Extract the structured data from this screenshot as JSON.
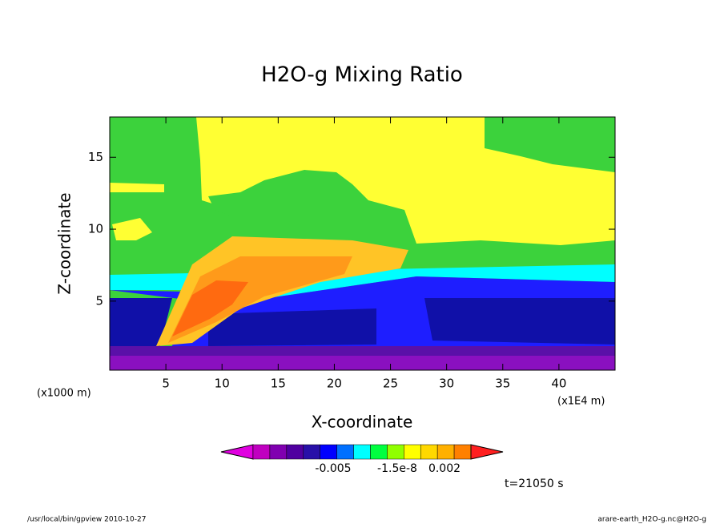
{
  "chart_data": {
    "type": "contour",
    "title": "H2O-g Mixing Ratio",
    "xlabel": "X-coordinate",
    "ylabel": "Z-coordinate",
    "xunit": "(x1E4 m)",
    "yunit": "(x1000 m)",
    "xlim": [
      0,
      45
    ],
    "ylim": [
      0.2,
      17.8
    ],
    "xticks": [
      5,
      10,
      15,
      20,
      25,
      30,
      35,
      40
    ],
    "yticks": [
      5,
      10,
      15
    ],
    "colorbar": {
      "colors": [
        "#e000e0",
        "#c000c0",
        "#8000b0",
        "#5000a0",
        "#2810a8",
        "#0000ff",
        "#0070ff",
        "#00ffff",
        "#00ff40",
        "#90ff00",
        "#ffff00",
        "#ffd800",
        "#ffb000",
        "#ff8000",
        "#ff2020"
      ],
      "labels": [
        "-0.005",
        "-1.5e-8",
        "0.002"
      ]
    },
    "time_label": "t=21050 s",
    "footer_left": "/usr/local/bin/gpview  2010-10-27",
    "footer_right": "arare-earth_H2O-g.nc@H2O-g"
  }
}
